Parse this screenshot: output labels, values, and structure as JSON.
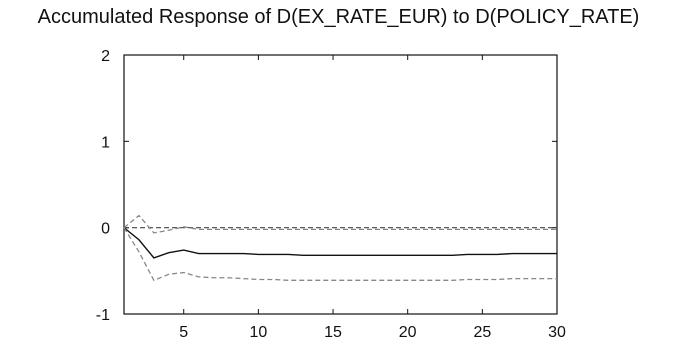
{
  "chart_data": {
    "type": "line",
    "title": "Accumulated Response of D(EX_RATE_EUR) to D(POLICY_RATE)",
    "xlabel": "",
    "ylabel": "",
    "xlim": [
      1,
      30
    ],
    "ylim": [
      -1,
      2
    ],
    "x_ticks": [
      5,
      10,
      15,
      20,
      25,
      30
    ],
    "y_ticks": [
      -1,
      0,
      1,
      2
    ],
    "grid": false,
    "legend": "none",
    "x": [
      1,
      2,
      3,
      4,
      5,
      6,
      7,
      8,
      9,
      10,
      11,
      12,
      13,
      14,
      15,
      16,
      17,
      18,
      19,
      20,
      21,
      22,
      23,
      24,
      25,
      26,
      27,
      28,
      29,
      30
    ],
    "series": [
      {
        "role": "response",
        "style": "solid",
        "color": "#111111",
        "values": [
          0,
          -0.14,
          -0.35,
          -0.29,
          -0.26,
          -0.3,
          -0.3,
          -0.3,
          -0.3,
          -0.31,
          -0.31,
          -0.31,
          -0.32,
          -0.32,
          -0.32,
          -0.32,
          -0.32,
          -0.32,
          -0.32,
          -0.32,
          -0.32,
          -0.32,
          -0.32,
          -0.31,
          -0.31,
          -0.31,
          -0.3,
          -0.3,
          -0.3,
          -0.3
        ]
      },
      {
        "role": "upper-band",
        "style": "dashed",
        "color": "#888888",
        "values": [
          0,
          0.14,
          -0.06,
          -0.03,
          0.01,
          -0.02,
          -0.02,
          -0.02,
          -0.02,
          -0.02,
          -0.02,
          -0.02,
          -0.02,
          -0.02,
          -0.02,
          -0.02,
          -0.02,
          -0.02,
          -0.02,
          -0.02,
          -0.02,
          -0.02,
          -0.02,
          -0.02,
          -0.02,
          -0.02,
          -0.02,
          -0.02,
          -0.02,
          -0.02
        ]
      },
      {
        "role": "lower-band",
        "style": "dashed",
        "color": "#888888",
        "values": [
          0,
          -0.28,
          -0.61,
          -0.54,
          -0.52,
          -0.57,
          -0.58,
          -0.58,
          -0.59,
          -0.6,
          -0.6,
          -0.61,
          -0.61,
          -0.61,
          -0.61,
          -0.61,
          -0.61,
          -0.61,
          -0.61,
          -0.61,
          -0.61,
          -0.61,
          -0.61,
          -0.6,
          -0.6,
          -0.6,
          -0.59,
          -0.59,
          -0.59,
          -0.59
        ]
      }
    ],
    "zero_line": {
      "value": 0,
      "style": "dashed",
      "color": "#444444"
    }
  }
}
